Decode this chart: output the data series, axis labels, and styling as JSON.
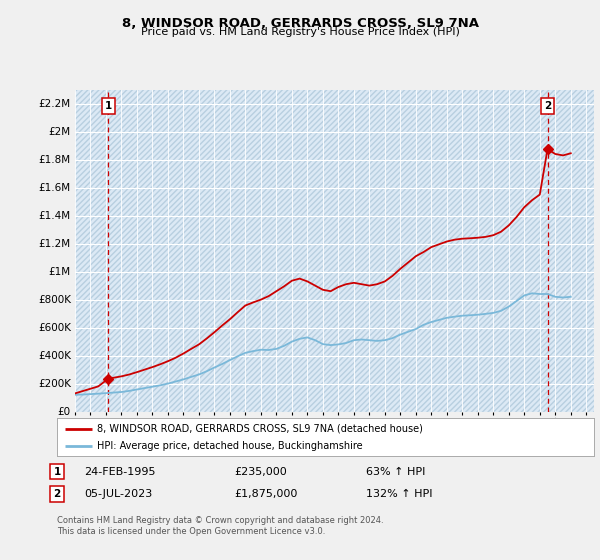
{
  "title": "8, WINDSOR ROAD, GERRARDS CROSS, SL9 7NA",
  "subtitle": "Price paid vs. HM Land Registry's House Price Index (HPI)",
  "ylabel_values": [
    "£0",
    "£200K",
    "£400K",
    "£600K",
    "£800K",
    "£1M",
    "£1.2M",
    "£1.4M",
    "£1.6M",
    "£1.8M",
    "£2M",
    "£2.2M"
  ],
  "ytick_values": [
    0,
    200000,
    400000,
    600000,
    800000,
    1000000,
    1200000,
    1400000,
    1600000,
    1800000,
    2000000,
    2200000
  ],
  "ylim": [
    0,
    2300000
  ],
  "xlim_start": 1993.0,
  "xlim_end": 2026.5,
  "fig_bg_color": "#f0f0f0",
  "plot_bg_color": "#dce9f5",
  "hatch_color": "#b8cfe0",
  "grid_color": "#ffffff",
  "hpi_line_color": "#7ab8d9",
  "price_line_color": "#cc0000",
  "sale1_x": 1995.15,
  "sale1_y": 235000,
  "sale1_label": "1",
  "sale1_date": "24-FEB-1995",
  "sale1_price": "£235,000",
  "sale1_hpi": "63% ↑ HPI",
  "sale2_x": 2023.5,
  "sale2_y": 1875000,
  "sale2_label": "2",
  "sale2_date": "05-JUL-2023",
  "sale2_price": "£1,875,000",
  "sale2_hpi": "132% ↑ HPI",
  "legend_line1": "8, WINDSOR ROAD, GERRARDS CROSS, SL9 7NA (detached house)",
  "legend_line2": "HPI: Average price, detached house, Buckinghamshire",
  "footer": "Contains HM Land Registry data © Crown copyright and database right 2024.\nThis data is licensed under the Open Government Licence v3.0.",
  "hpi_data_x": [
    1993.0,
    1993.5,
    1994.0,
    1994.5,
    1995.0,
    1995.5,
    1996.0,
    1996.5,
    1997.0,
    1997.5,
    1998.0,
    1998.5,
    1999.0,
    1999.5,
    2000.0,
    2000.5,
    2001.0,
    2001.5,
    2002.0,
    2002.5,
    2003.0,
    2003.5,
    2004.0,
    2004.5,
    2005.0,
    2005.5,
    2006.0,
    2006.5,
    2007.0,
    2007.5,
    2008.0,
    2008.5,
    2009.0,
    2009.5,
    2010.0,
    2010.5,
    2011.0,
    2011.5,
    2012.0,
    2012.5,
    2013.0,
    2013.5,
    2014.0,
    2014.5,
    2015.0,
    2015.5,
    2016.0,
    2016.5,
    2017.0,
    2017.5,
    2018.0,
    2018.5,
    2019.0,
    2019.5,
    2020.0,
    2020.5,
    2021.0,
    2021.5,
    2022.0,
    2022.5,
    2023.0,
    2023.5,
    2024.0,
    2024.5,
    2025.0
  ],
  "hpi_data_y": [
    120000,
    122000,
    125000,
    128000,
    132000,
    136000,
    140000,
    148000,
    158000,
    168000,
    178000,
    188000,
    200000,
    215000,
    230000,
    248000,
    265000,
    288000,
    315000,
    340000,
    368000,
    395000,
    420000,
    432000,
    442000,
    440000,
    448000,
    470000,
    500000,
    520000,
    530000,
    510000,
    482000,
    475000,
    480000,
    490000,
    510000,
    515000,
    510000,
    505000,
    510000,
    525000,
    550000,
    570000,
    590000,
    620000,
    640000,
    655000,
    670000,
    678000,
    685000,
    688000,
    692000,
    698000,
    705000,
    720000,
    750000,
    790000,
    830000,
    845000,
    840000,
    840000,
    820000,
    815000,
    820000
  ],
  "price_data_x": [
    1993.0,
    1994.5,
    1995.15,
    1995.5,
    1996.0,
    1996.5,
    1997.0,
    1997.5,
    1998.0,
    1998.5,
    1999.0,
    1999.5,
    2000.0,
    2000.5,
    2001.0,
    2001.5,
    2002.0,
    2002.5,
    2003.0,
    2003.5,
    2004.0,
    2004.5,
    2005.0,
    2005.5,
    2006.0,
    2006.5,
    2007.0,
    2007.5,
    2008.0,
    2008.5,
    2009.0,
    2009.5,
    2010.0,
    2010.5,
    2011.0,
    2011.5,
    2012.0,
    2012.5,
    2013.0,
    2013.5,
    2014.0,
    2014.5,
    2015.0,
    2015.5,
    2016.0,
    2016.5,
    2017.0,
    2017.5,
    2018.0,
    2018.5,
    2019.0,
    2019.5,
    2020.0,
    2020.5,
    2021.0,
    2021.5,
    2022.0,
    2022.5,
    2023.0,
    2023.5,
    2024.0,
    2024.5,
    2025.0
  ],
  "price_data_y": [
    130000,
    180000,
    235000,
    242000,
    252000,
    265000,
    282000,
    300000,
    318000,
    338000,
    360000,
    385000,
    415000,
    448000,
    480000,
    522000,
    567000,
    615000,
    660000,
    710000,
    758000,
    780000,
    800000,
    825000,
    860000,
    895000,
    935000,
    950000,
    930000,
    900000,
    870000,
    860000,
    890000,
    910000,
    920000,
    910000,
    900000,
    910000,
    930000,
    970000,
    1020000,
    1065000,
    1110000,
    1140000,
    1175000,
    1195000,
    1215000,
    1228000,
    1235000,
    1238000,
    1242000,
    1248000,
    1260000,
    1285000,
    1330000,
    1390000,
    1460000,
    1510000,
    1550000,
    1875000,
    1840000,
    1830000,
    1845000
  ]
}
